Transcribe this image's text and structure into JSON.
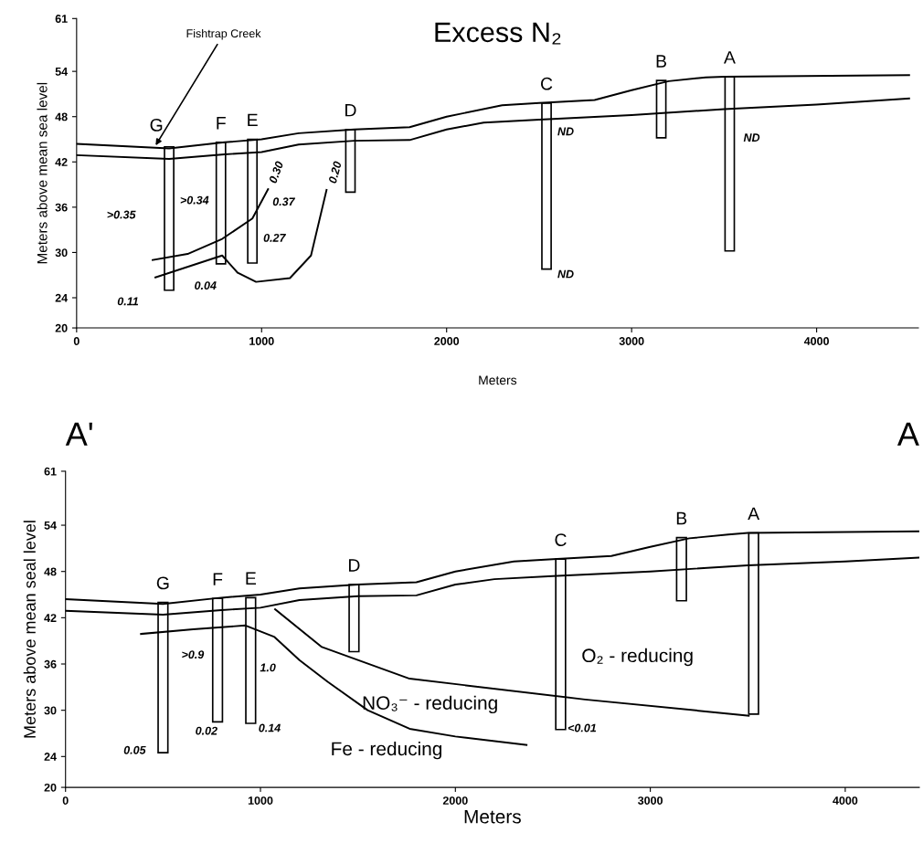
{
  "chart_data": [
    {
      "type": "line",
      "title": "Excess N₂",
      "xlabel": "Meters",
      "ylabel": "Meters above mean sea level",
      "xlim": [
        0,
        4550
      ],
      "xticks": [
        0,
        1000,
        2000,
        3000,
        4000
      ],
      "ylim": [
        20,
        61
      ],
      "yticks": [
        20,
        24,
        30,
        36,
        42,
        48,
        54,
        61
      ],
      "grid": false,
      "series": [
        {
          "color": "#000000",
          "x": [
            0,
            500,
            800,
            1000,
            1200,
            1500,
            1800,
            2000,
            2300,
            2500,
            2800,
            3000,
            3200,
            3400,
            3500,
            4500
          ],
          "values": [
            44.4,
            43.8,
            44.6,
            45.0,
            45.8,
            46.3,
            46.6,
            48.0,
            49.5,
            49.8,
            50.2,
            51.5,
            52.7,
            53.2,
            53.3,
            53.5
          ]
        },
        {
          "color": "#000000",
          "x": [
            0,
            500,
            800,
            1000,
            1200,
            1500,
            1800,
            2000,
            2200,
            2500,
            3000,
            3500,
            4000,
            4500
          ],
          "values": [
            42.9,
            42.4,
            43.0,
            43.3,
            44.3,
            44.8,
            44.9,
            46.3,
            47.2,
            47.6,
            48.2,
            49.0,
            49.6,
            50.4
          ]
        },
        {
          "color": "#000000",
          "x": [
            411,
            600,
            787,
            950,
            1035
          ],
          "values": [
            29.0,
            29.8,
            31.8,
            34.5,
            38.4
          ]
        },
        {
          "color": "#000000",
          "x": [
            426,
            787,
            871,
            970,
            1153,
            1267,
            1351
          ],
          "values": [
            26.7,
            29.6,
            27.3,
            26.1,
            26.6,
            29.6,
            38.3
          ]
        },
        {
          "type": "bar",
          "color": "#ffffff",
          "x": [
            500,
            780,
            950,
            1480,
            2540,
            3160,
            3530
          ],
          "base": [
            25.0,
            28.5,
            28.6,
            38.0,
            27.8,
            45.2,
            30.2
          ],
          "values": [
            19.0,
            16.1,
            16.4,
            8.3,
            22.0,
            7.6,
            23.1
          ]
        }
      ],
      "annotations": [
        {
          "text": "Fishtrap Creek",
          "x": 420,
          "y": 43.9
        },
        {
          "text": "G",
          "x": 500,
          "y": 44.0
        },
        {
          "text": "F",
          "x": 780,
          "y": 44.6
        },
        {
          "text": "E",
          "x": 950,
          "y": 45.0
        },
        {
          "text": "D",
          "x": 1480,
          "y": 46.3
        },
        {
          "text": "C",
          "x": 2540,
          "y": 49.8
        },
        {
          "text": "B",
          "x": 3160,
          "y": 52.8
        },
        {
          "text": "A",
          "x": 3530,
          "y": 53.3
        },
        ">0.35",
        ">0.34",
        "0.30",
        "0.37",
        "0.27",
        "0.04",
        "0.11",
        "0.20",
        "ND",
        "ND",
        "ND"
      ]
    },
    {
      "type": "line",
      "xlabel": "Meters",
      "ylabel": "Meters above mean seal level",
      "xlim": [
        0,
        4380
      ],
      "xticks": [
        0,
        1000,
        2000,
        3000,
        4000
      ],
      "ylim": [
        20,
        61
      ],
      "yticks": [
        20,
        24,
        30,
        36,
        42,
        48,
        54,
        61
      ],
      "grid": false,
      "series": [
        {
          "color": "#000000",
          "x": [
            0,
            500,
            800,
            1000,
            1200,
            1500,
            1800,
            2000,
            2300,
            2500,
            2800,
            3000,
            3200,
            3400,
            3500,
            4380
          ],
          "values": [
            44.4,
            43.8,
            44.6,
            45.0,
            45.8,
            46.3,
            46.6,
            48.0,
            49.3,
            49.6,
            50.0,
            51.2,
            52.3,
            52.8,
            53.0,
            53.2
          ]
        },
        {
          "color": "#000000",
          "x": [
            0,
            500,
            800,
            1000,
            1200,
            1500,
            1800,
            2000,
            2200,
            2500,
            3000,
            3500,
            4000,
            4380
          ],
          "values": [
            42.9,
            42.4,
            43.0,
            43.3,
            44.3,
            44.8,
            44.9,
            46.3,
            47.0,
            47.4,
            48.0,
            48.8,
            49.3,
            49.8
          ]
        },
        {
          "color": "#000000",
          "x": [
            387,
            655,
            923,
            1072,
            1200,
            1345,
            1550,
            1765,
            2000,
            2365
          ],
          "values": [
            39.9,
            40.5,
            41.0,
            39.5,
            36.5,
            33.7,
            30.0,
            27.6,
            26.6,
            25.5
          ]
        },
        {
          "color": "#000000",
          "x": [
            1075,
            1315,
            1765,
            2665,
            3505
          ],
          "values": [
            43.1,
            38.2,
            34.1,
            31.4,
            29.3
          ]
        },
        {
          "type": "bar",
          "color": "#ffffff",
          "x": [
            500,
            780,
            950,
            1480,
            2540,
            3160,
            3530
          ],
          "base": [
            24.5,
            28.5,
            28.3,
            37.6,
            27.5,
            44.2,
            29.5
          ],
          "values": [
            19.5,
            16.0,
            16.3,
            8.7,
            22.1,
            8.2,
            23.5
          ]
        }
      ],
      "annotations": [
        "A'",
        "A",
        {
          "text": "G",
          "x": 500,
          "y": 44.0
        },
        {
          "text": "F",
          "x": 780,
          "y": 44.5
        },
        {
          "text": "E",
          "x": 950,
          "y": 44.6
        },
        {
          "text": "D",
          "x": 1480,
          "y": 46.3
        },
        {
          "text": "C",
          "x": 2540,
          "y": 49.6
        },
        {
          "text": "B",
          "x": 3160,
          "y": 52.4
        },
        {
          "text": "A",
          "x": 3530,
          "y": 53.0
        },
        ">0.9",
        "1.0",
        "0.02",
        "0.14",
        "0.05",
        "<0.01",
        "O₂ - reducing",
        "NO₃⁻ - reducing",
        "Fe - reducing"
      ]
    }
  ]
}
